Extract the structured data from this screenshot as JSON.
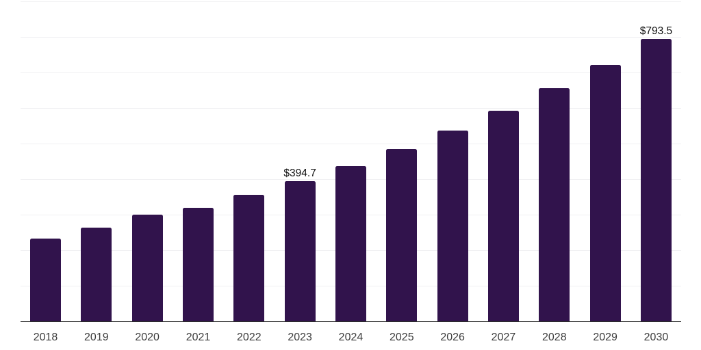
{
  "chart": {
    "background_color": "#ffffff",
    "bar_color": "#31134c",
    "grid_color": "#f0f0f2",
    "axis_color": "#2b2b2b",
    "tick_label_color": "#3c3c3c",
    "data_label_color": "#101010"
  },
  "chart_data": {
    "type": "bar",
    "title": "",
    "xlabel": "",
    "ylabel": "",
    "categories": [
      "2018",
      "2019",
      "2020",
      "2021",
      "2022",
      "2023",
      "2024",
      "2025",
      "2026",
      "2027",
      "2028",
      "2029",
      "2030"
    ],
    "values": [
      232,
      263,
      300,
      319,
      355,
      394.7,
      436,
      485,
      537,
      593,
      655,
      722,
      793.5
    ],
    "data_labels": {
      "2023": "$394.7",
      "2030": "$793.5"
    },
    "currency_prefix": "$",
    "ylim": [
      0,
      900
    ],
    "gridline_step": 100,
    "grid": "horizontal",
    "legend": "none",
    "x_axis_line": true,
    "y_axis_labels": "none"
  }
}
